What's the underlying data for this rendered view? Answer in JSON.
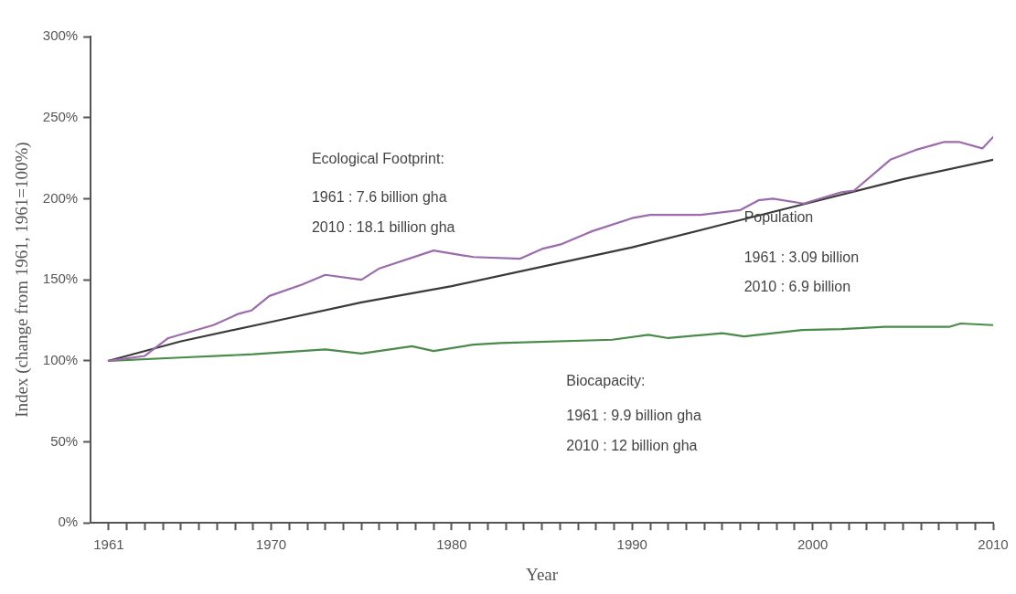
{
  "chart_data": {
    "type": "line",
    "xlabel": "Year",
    "ylabel": "Index (change from 1961, 1961=100%)",
    "xlim": [
      1960,
      2010
    ],
    "xticks": [
      {
        "value": 1961,
        "label": "1961"
      },
      {
        "value": 1962,
        "label": null
      },
      {
        "value": 1963,
        "label": null
      },
      {
        "value": 1964,
        "label": null
      },
      {
        "value": 1965,
        "label": null
      },
      {
        "value": 1966,
        "label": null
      },
      {
        "value": 1967,
        "label": null
      },
      {
        "value": 1968,
        "label": null
      },
      {
        "value": 1969,
        "label": null
      },
      {
        "value": 1970,
        "label": "1970"
      },
      {
        "value": 1971,
        "label": null
      },
      {
        "value": 1972,
        "label": null
      },
      {
        "value": 1973,
        "label": null
      },
      {
        "value": 1974,
        "label": null
      },
      {
        "value": 1975,
        "label": null
      },
      {
        "value": 1976,
        "label": null
      },
      {
        "value": 1977,
        "label": null
      },
      {
        "value": 1978,
        "label": null
      },
      {
        "value": 1979,
        "label": null
      },
      {
        "value": 1980,
        "label": "1980"
      },
      {
        "value": 1981,
        "label": null
      },
      {
        "value": 1982,
        "label": null
      },
      {
        "value": 1983,
        "label": null
      },
      {
        "value": 1984,
        "label": null
      },
      {
        "value": 1985,
        "label": null
      },
      {
        "value": 1986,
        "label": null
      },
      {
        "value": 1987,
        "label": null
      },
      {
        "value": 1988,
        "label": null
      },
      {
        "value": 1989,
        "label": null
      },
      {
        "value": 1990,
        "label": "1990"
      },
      {
        "value": 1991,
        "label": null
      },
      {
        "value": 1992,
        "label": null
      },
      {
        "value": 1993,
        "label": null
      },
      {
        "value": 1994,
        "label": null
      },
      {
        "value": 1995,
        "label": null
      },
      {
        "value": 1996,
        "label": null
      },
      {
        "value": 1997,
        "label": null
      },
      {
        "value": 1998,
        "label": null
      },
      {
        "value": 1999,
        "label": null
      },
      {
        "value": 2000,
        "label": "2000"
      },
      {
        "value": 2001,
        "label": null
      },
      {
        "value": 2002,
        "label": null
      },
      {
        "value": 2003,
        "label": null
      },
      {
        "value": 2004,
        "label": null
      },
      {
        "value": 2005,
        "label": null
      },
      {
        "value": 2006,
        "label": null
      },
      {
        "value": 2007,
        "label": null
      },
      {
        "value": 2008,
        "label": null
      },
      {
        "value": 2009,
        "label": null
      },
      {
        "value": 2010,
        "label": "2010"
      }
    ],
    "ylim": [
      0,
      300
    ],
    "yticks": [
      {
        "value": 0,
        "label": "0%"
      },
      {
        "value": 50,
        "label": "50%"
      },
      {
        "value": 100,
        "label": "100%"
      },
      {
        "value": 150,
        "label": "150%"
      },
      {
        "value": 200,
        "label": "200%"
      },
      {
        "value": 250,
        "label": "250%"
      },
      {
        "value": 300,
        "label": "300%"
      }
    ],
    "grid": false,
    "legend": false,
    "marker": "none",
    "line_style": "solid",
    "series": [
      {
        "color": "#9b6bab",
        "x": [
          1961,
          1963,
          1964.3,
          1966.8,
          1968.2,
          1968.9,
          1969.9,
          1971.7,
          1973,
          1975,
          1976,
          1979,
          1981.2,
          1983.8,
          1985,
          1986.1,
          1987.8,
          1990,
          1991,
          1993.8,
          1996,
          1997,
          1997.8,
          1999.5,
          2001.6,
          2002.3,
          2004.3,
          2005.7,
          2007.3,
          2008.1,
          2009.4,
          2010
        ],
        "values": [
          100,
          103,
          114,
          122,
          129,
          131,
          140,
          147,
          153,
          150,
          157,
          168,
          164,
          163,
          169,
          172,
          180,
          188,
          190,
          190,
          193,
          199,
          200,
          197,
          204,
          205,
          224,
          230,
          235,
          235,
          231,
          238
        ]
      },
      {
        "color": "#3a3a3a",
        "x": [
          1961,
          1965,
          1970,
          1975,
          1980,
          1985,
          1990,
          1995,
          2000,
          2005,
          2010
        ],
        "values": [
          100,
          112,
          124,
          136,
          146,
          158,
          170,
          184,
          198,
          212,
          224
        ]
      },
      {
        "color": "#4a8a4a",
        "x": [
          1961,
          1965,
          1969,
          1973,
          1975,
          1977.8,
          1979,
          1981.2,
          1982.7,
          1988.9,
          1990.9,
          1992,
          1995,
          1996.2,
          1999.4,
          2001.6,
          2004,
          2007.6,
          2008.2,
          2010
        ],
        "values": [
          100,
          102,
          104,
          107,
          104.5,
          109,
          106,
          110,
          111,
          113,
          116,
          114,
          117,
          115,
          119,
          119.5,
          121,
          121,
          123,
          122
        ]
      }
    ],
    "annotations": [
      "Ecological Footprint:",
      "1961 : 7.6 billion gha",
      "2010 : 18.1 billion gha",
      "Population",
      "1961 : 3.09 billion",
      "2010 : 6.9 billion",
      "Biocapacity:",
      "1961 : 9.9 billion gha",
      "2010 : 12 billion gha"
    ]
  }
}
